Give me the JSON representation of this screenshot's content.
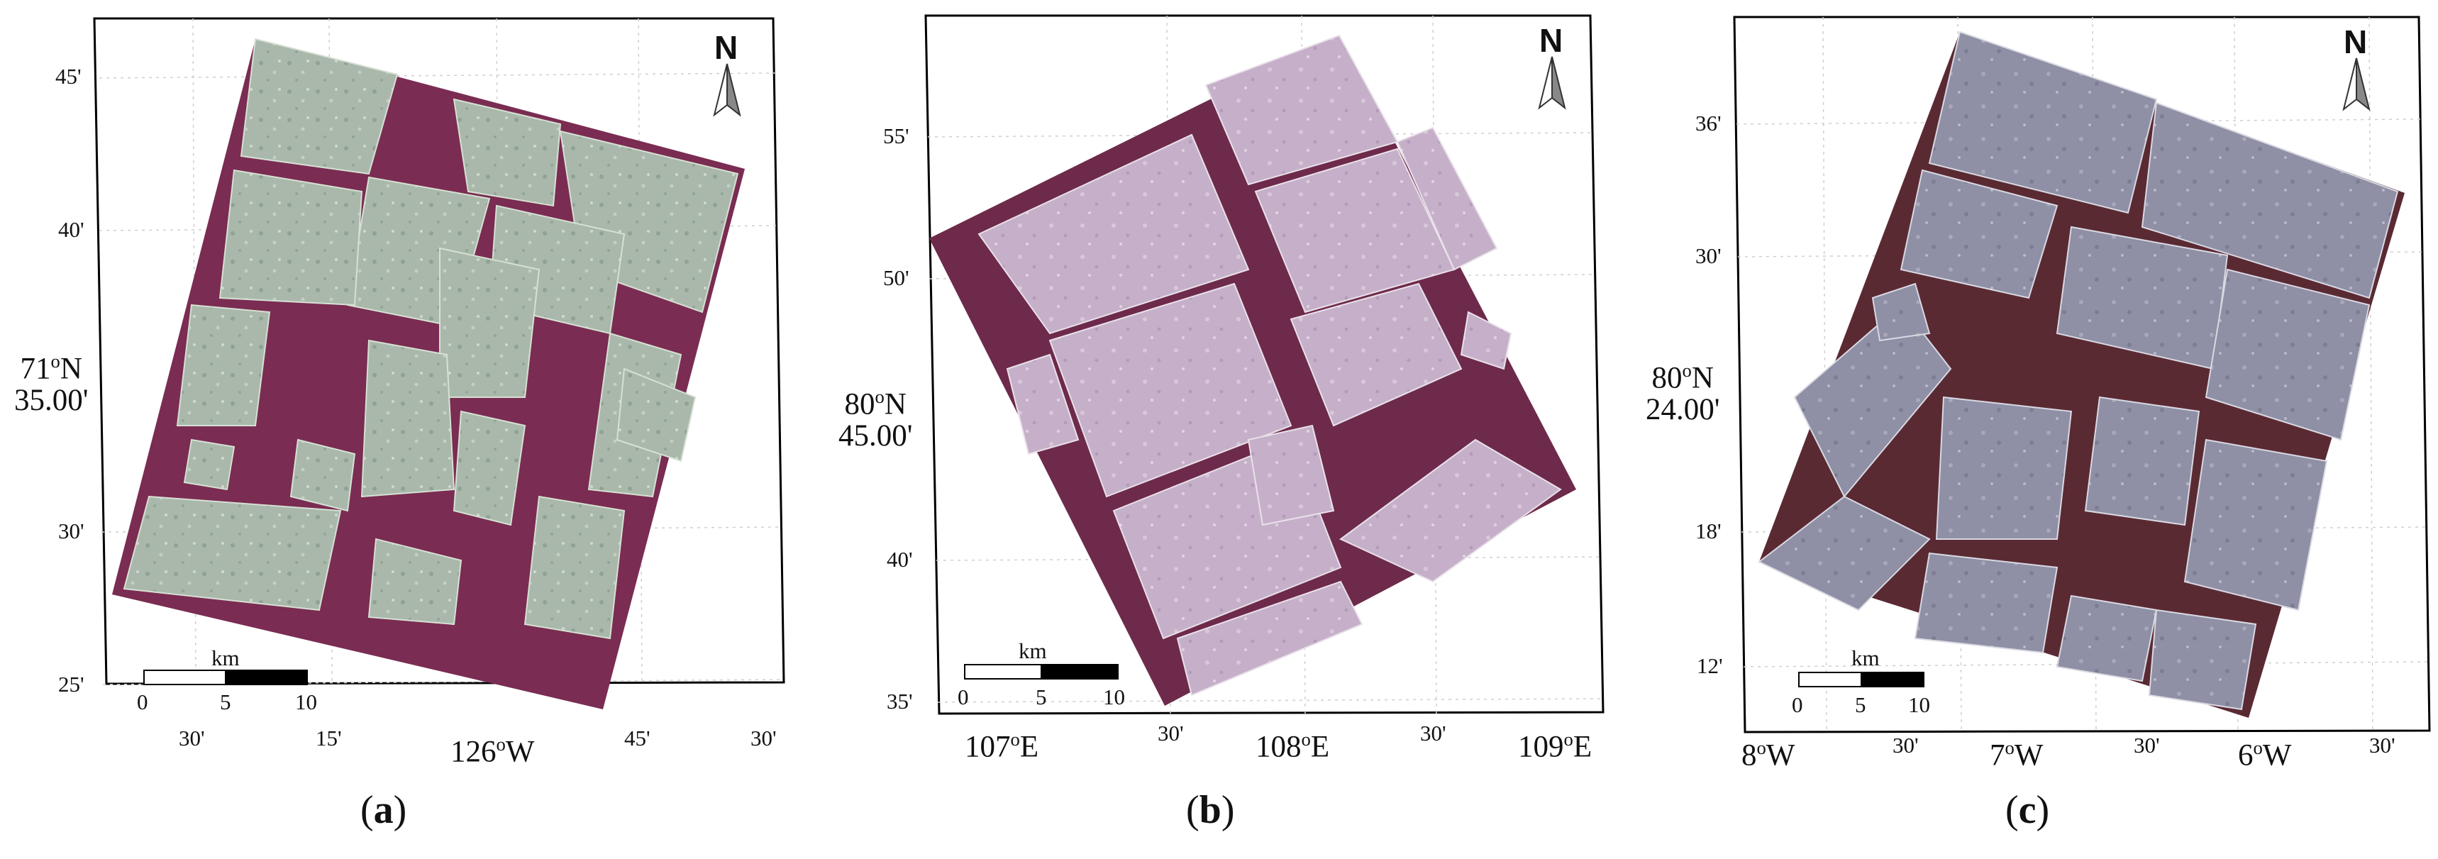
{
  "panels": [
    {
      "caption_letter": "a",
      "center_label_lat": "71",
      "center_label_hem": "N",
      "center_label_minutes": "35.00'",
      "lat_ticks": [
        "45'",
        "40'",
        "30'",
        "25'"
      ],
      "lon_ticks_minutes": [
        "30'",
        "15'",
        "45'",
        "30'"
      ],
      "lon_center_deg": "126",
      "lon_center_hem": "W",
      "north_label": "N",
      "scale_unit": "km",
      "scale_ticks": [
        "0",
        "5",
        "10"
      ]
    },
    {
      "caption_letter": "b",
      "center_label_lat": "80",
      "center_label_hem": "N",
      "center_label_minutes": "45.00'",
      "lat_ticks": [
        "55'",
        "50'",
        "40'",
        "35'"
      ],
      "lon_degree_labels": [
        {
          "deg": "107",
          "hem": "E"
        },
        {
          "deg": "108",
          "hem": "E"
        },
        {
          "deg": "109",
          "hem": "E"
        }
      ],
      "lon_ticks_minutes": [
        "30'",
        "30'"
      ],
      "north_label": "N",
      "scale_unit": "km",
      "scale_ticks": [
        "0",
        "5",
        "10"
      ]
    },
    {
      "caption_letter": "c",
      "center_label_lat": "80",
      "center_label_hem": "N",
      "center_label_minutes": "24.00'",
      "lat_ticks": [
        "36'",
        "30'",
        "18'",
        "12'"
      ],
      "lon_degree_labels": [
        {
          "deg": "8",
          "hem": "W"
        },
        {
          "deg": "7",
          "hem": "W"
        },
        {
          "deg": "6",
          "hem": "W"
        }
      ],
      "lon_ticks_minutes": [
        "30'",
        "30'",
        "30'"
      ],
      "north_label": "N",
      "scale_unit": "km",
      "scale_ticks": [
        "0",
        "5",
        "10"
      ]
    }
  ],
  "colors": {
    "water_a": "#7a2c52",
    "ice_a": "#a7b7a8",
    "water_b": "#6e2a4a",
    "ice_b": "#c3adc6",
    "water_c": "#5a2a33",
    "ice_c": "#8e8ea2",
    "frame": "#000000",
    "grid": "#cfcfcf"
  }
}
